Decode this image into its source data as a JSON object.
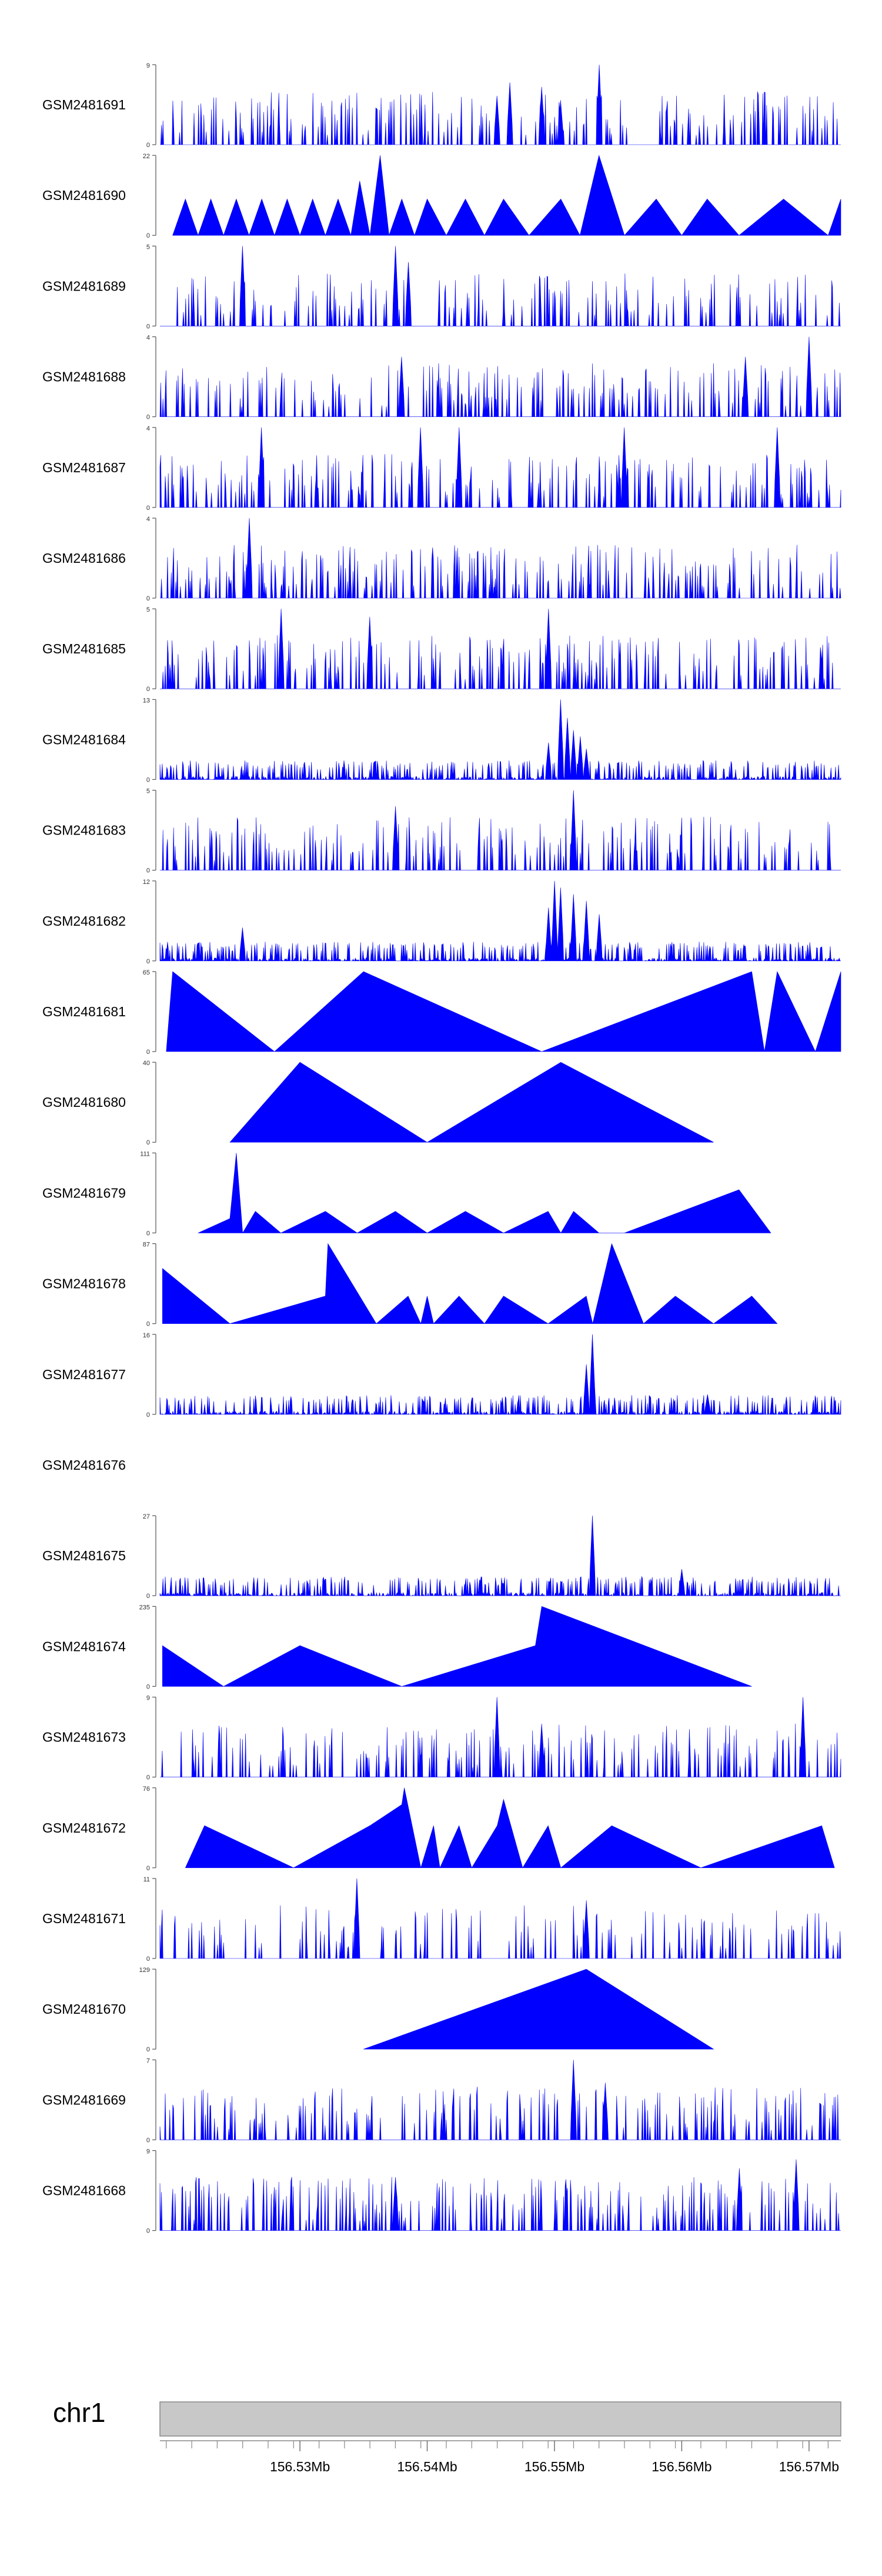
{
  "chart_data": {
    "type": "area",
    "title": "",
    "fill_color": "#0000ff",
    "x_range_mb": [
      156.519,
      156.5725
    ],
    "tracks": [
      {
        "name": "GSM2481691",
        "ymax": "9",
        "ymin": "0",
        "pattern": "dense",
        "seed": 11,
        "peaks": [
          [
            156.5455,
            5.5
          ],
          [
            156.5465,
            7
          ],
          [
            156.549,
            6.5
          ],
          [
            156.5505,
            5
          ],
          [
            156.5535,
            9
          ]
        ]
      },
      {
        "name": "GSM2481690",
        "ymax": "22",
        "ymin": "0",
        "pattern": "triangles",
        "seed": 23,
        "vertices": [
          [
            156.52,
            0
          ],
          [
            156.521,
            10
          ],
          [
            156.522,
            0
          ],
          [
            156.523,
            10
          ],
          [
            156.524,
            0
          ],
          [
            156.525,
            10
          ],
          [
            156.526,
            0
          ],
          [
            156.527,
            10
          ],
          [
            156.528,
            0
          ],
          [
            156.529,
            10
          ],
          [
            156.53,
            0
          ],
          [
            156.531,
            10
          ],
          [
            156.532,
            0
          ],
          [
            156.533,
            10
          ],
          [
            156.534,
            0
          ],
          [
            156.5347,
            15
          ],
          [
            156.5355,
            0
          ],
          [
            156.5363,
            22
          ],
          [
            156.537,
            0
          ],
          [
            156.538,
            10
          ],
          [
            156.539,
            0
          ],
          [
            156.54,
            10
          ],
          [
            156.5415,
            0
          ],
          [
            156.543,
            10
          ],
          [
            156.5445,
            0
          ],
          [
            156.546,
            10
          ],
          [
            156.548,
            0
          ],
          [
            156.5505,
            10
          ],
          [
            156.552,
            0
          ],
          [
            156.5535,
            22
          ],
          [
            156.5555,
            0
          ],
          [
            156.558,
            10
          ],
          [
            156.56,
            0
          ],
          [
            156.562,
            10
          ],
          [
            156.5645,
            0
          ],
          [
            156.568,
            10
          ],
          [
            156.5715,
            0
          ],
          [
            156.5725,
            10
          ],
          [
            156.5725,
            0
          ]
        ]
      },
      {
        "name": "GSM2481689",
        "ymax": "5",
        "ymin": "0",
        "pattern": "sparse",
        "seed": 37,
        "peaks": [
          [
            156.5255,
            5
          ],
          [
            156.5375,
            5
          ],
          [
            156.5385,
            4
          ]
        ]
      },
      {
        "name": "GSM2481688",
        "ymax": "4",
        "ymin": "0",
        "pattern": "dense",
        "seed": 41,
        "peaks": [
          [
            156.57,
            4
          ],
          [
            156.565,
            3
          ],
          [
            156.538,
            3
          ]
        ]
      },
      {
        "name": "GSM2481687",
        "ymax": "4",
        "ymin": "0",
        "pattern": "dense",
        "seed": 53,
        "peaks": [
          [
            156.527,
            4
          ],
          [
            156.5395,
            4
          ],
          [
            156.5425,
            4
          ],
          [
            156.5555,
            4
          ],
          [
            156.5675,
            4
          ]
        ]
      },
      {
        "name": "GSM2481686",
        "ymax": "4",
        "ymin": "0",
        "pattern": "dense",
        "seed": 67,
        "peaks": [
          [
            156.526,
            4
          ]
        ]
      },
      {
        "name": "GSM2481685",
        "ymax": "5",
        "ymin": "0",
        "pattern": "dense",
        "seed": 79,
        "peaks": [
          [
            156.5285,
            5
          ],
          [
            156.5495,
            5
          ],
          [
            156.5355,
            4.5
          ]
        ]
      },
      {
        "name": "GSM2481684",
        "ymax": "13",
        "ymin": "0",
        "pattern": "low",
        "seed": 83,
        "peaks": [
          [
            156.5505,
            13
          ],
          [
            156.551,
            10
          ],
          [
            156.5515,
            8
          ],
          [
            156.552,
            7
          ],
          [
            156.5495,
            6
          ],
          [
            156.5525,
            5
          ]
        ]
      },
      {
        "name": "GSM2481683",
        "ymax": "5",
        "ymin": "0",
        "pattern": "dense",
        "seed": 97,
        "peaks": [
          [
            156.5515,
            5
          ],
          [
            156.5375,
            4
          ]
        ]
      },
      {
        "name": "GSM2481682",
        "ymax": "12",
        "ymin": "0",
        "pattern": "low",
        "seed": 101,
        "peaks": [
          [
            156.55,
            12
          ],
          [
            156.5505,
            11
          ],
          [
            156.5515,
            10
          ],
          [
            156.5525,
            9
          ],
          [
            156.5495,
            8
          ],
          [
            156.5535,
            7
          ],
          [
            156.5255,
            5
          ]
        ]
      },
      {
        "name": "GSM2481681",
        "ymax": "65",
        "ymin": "0",
        "pattern": "triangles",
        "seed": 0,
        "vertices": [
          [
            156.5195,
            0
          ],
          [
            156.52,
            65
          ],
          [
            156.528,
            0
          ],
          [
            156.535,
            65
          ],
          [
            156.549,
            0
          ],
          [
            156.5655,
            65
          ],
          [
            156.5665,
            0
          ],
          [
            156.5675,
            65
          ],
          [
            156.5705,
            0
          ],
          [
            156.5725,
            65
          ],
          [
            156.5725,
            0
          ]
        ]
      },
      {
        "name": "GSM2481680",
        "ymax": "40",
        "ymin": "0",
        "pattern": "triangles",
        "seed": 0,
        "vertices": [
          [
            156.5245,
            0
          ],
          [
            156.53,
            40
          ],
          [
            156.54,
            0
          ],
          [
            156.5505,
            40
          ],
          [
            156.5625,
            0
          ]
        ]
      },
      {
        "name": "GSM2481679",
        "ymax": "111",
        "ymin": "0",
        "pattern": "triangles",
        "seed": 0,
        "vertices": [
          [
            156.522,
            0
          ],
          [
            156.5245,
            20
          ],
          [
            156.525,
            111
          ],
          [
            156.5255,
            0
          ],
          [
            156.5265,
            30
          ],
          [
            156.5285,
            0
          ],
          [
            156.532,
            30
          ],
          [
            156.5345,
            0
          ],
          [
            156.5375,
            30
          ],
          [
            156.54,
            0
          ],
          [
            156.543,
            30
          ],
          [
            156.546,
            0
          ],
          [
            156.5495,
            30
          ],
          [
            156.5505,
            0
          ],
          [
            156.5515,
            30
          ],
          [
            156.5535,
            0
          ],
          [
            156.5555,
            0
          ],
          [
            156.5645,
            60
          ],
          [
            156.567,
            0
          ]
        ]
      },
      {
        "name": "GSM2481678",
        "ymax": "87",
        "ymin": "0",
        "pattern": "triangles",
        "seed": 0,
        "vertices": [
          [
            156.5192,
            60
          ],
          [
            156.5245,
            0
          ],
          [
            156.532,
            30
          ],
          [
            156.5322,
            87
          ],
          [
            156.536,
            0
          ],
          [
            156.5385,
            30
          ],
          [
            156.5395,
            0
          ],
          [
            156.54,
            30
          ],
          [
            156.5405,
            0
          ],
          [
            156.5425,
            30
          ],
          [
            156.5445,
            0
          ],
          [
            156.546,
            30
          ],
          [
            156.5495,
            0
          ],
          [
            156.5525,
            30
          ],
          [
            156.553,
            0
          ],
          [
            156.5545,
            87
          ],
          [
            156.557,
            0
          ],
          [
            156.5595,
            30
          ],
          [
            156.5625,
            0
          ],
          [
            156.5655,
            30
          ],
          [
            156.5675,
            0
          ]
        ]
      },
      {
        "name": "GSM2481677",
        "ymax": "16",
        "ymin": "0",
        "pattern": "low",
        "seed": 131,
        "peaks": [
          [
            156.553,
            16
          ],
          [
            156.5525,
            10
          ],
          [
            156.562,
            4
          ]
        ]
      },
      {
        "name": "GSM2481676",
        "ymax": "",
        "ymin": "",
        "pattern": "empty",
        "seed": 0
      },
      {
        "name": "GSM2481675",
        "ymax": "27",
        "ymin": "0",
        "pattern": "low",
        "seed": 149,
        "peaks": [
          [
            156.553,
            27
          ],
          [
            156.56,
            9
          ]
        ]
      },
      {
        "name": "GSM2481674",
        "ymax": "235",
        "ymin": "0",
        "pattern": "triangles",
        "seed": 0,
        "vertices": [
          [
            156.5192,
            120
          ],
          [
            156.524,
            0
          ],
          [
            156.53,
            120
          ],
          [
            156.538,
            0
          ],
          [
            156.5485,
            120
          ],
          [
            156.549,
            235
          ],
          [
            156.5655,
            0
          ]
        ]
      },
      {
        "name": "GSM2481673",
        "ymax": "9",
        "ymin": "0",
        "pattern": "sparse",
        "seed": 163,
        "peaks": [
          [
            156.5455,
            9
          ],
          [
            156.5695,
            9
          ],
          [
            156.549,
            6
          ]
        ]
      },
      {
        "name": "GSM2481672",
        "ymax": "76",
        "ymin": "0",
        "pattern": "triangles",
        "seed": 0,
        "vertices": [
          [
            156.521,
            0
          ],
          [
            156.5225,
            40
          ],
          [
            156.5295,
            0
          ],
          [
            156.5355,
            40
          ],
          [
            156.538,
            60
          ],
          [
            156.5382,
            76
          ],
          [
            156.5395,
            0
          ],
          [
            156.5405,
            40
          ],
          [
            156.541,
            0
          ],
          [
            156.5425,
            40
          ],
          [
            156.5435,
            0
          ],
          [
            156.5455,
            40
          ],
          [
            156.546,
            65
          ],
          [
            156.5475,
            0
          ],
          [
            156.5495,
            40
          ],
          [
            156.5505,
            0
          ],
          [
            156.5545,
            40
          ],
          [
            156.5615,
            0
          ],
          [
            156.571,
            40
          ],
          [
            156.572,
            0
          ]
        ]
      },
      {
        "name": "GSM2481671",
        "ymax": "11",
        "ymin": "0",
        "pattern": "sparse",
        "seed": 181,
        "peaks": [
          [
            156.5345,
            11
          ],
          [
            156.5525,
            8
          ]
        ]
      },
      {
        "name": "GSM2481670",
        "ymax": "129",
        "ymin": "0",
        "pattern": "triangles",
        "seed": 0,
        "vertices": [
          [
            156.535,
            0
          ],
          [
            156.5525,
            129
          ],
          [
            156.5625,
            0
          ]
        ]
      },
      {
        "name": "GSM2481669",
        "ymax": "7",
        "ymin": "0",
        "pattern": "dense",
        "seed": 193,
        "peaks": [
          [
            156.5515,
            7
          ],
          [
            156.554,
            5
          ]
        ]
      },
      {
        "name": "GSM2481668",
        "ymax": "9",
        "ymin": "0",
        "pattern": "dense",
        "seed": 199,
        "peaks": [
          [
            156.569,
            8
          ],
          [
            156.5645,
            7
          ],
          [
            156.5375,
            6
          ]
        ]
      }
    ],
    "ideogram": {
      "chromosome": "chr1",
      "tick_values": [
        156.53,
        156.54,
        156.55,
        156.56,
        156.57
      ],
      "tick_labels": [
        "156.53Mb",
        "156.54Mb",
        "156.55Mb",
        "156.56Mb",
        "156.57Mb"
      ],
      "minor_tick_step": 0.002
    }
  }
}
